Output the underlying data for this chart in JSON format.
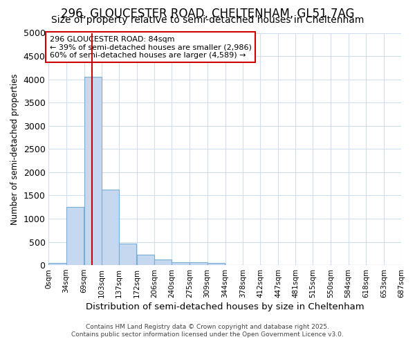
{
  "title1": "296, GLOUCESTER ROAD, CHELTENHAM, GL51 7AG",
  "title2": "Size of property relative to semi-detached houses in Cheltenham",
  "xlabel": "Distribution of semi-detached houses by size in Cheltenham",
  "ylabel": "Number of semi-detached properties",
  "bin_labels": [
    "0sqm",
    "34sqm",
    "69sqm",
    "103sqm",
    "137sqm",
    "172sqm",
    "206sqm",
    "240sqm",
    "275sqm",
    "309sqm",
    "344sqm",
    "378sqm",
    "412sqm",
    "447sqm",
    "481sqm",
    "515sqm",
    "550sqm",
    "584sqm",
    "618sqm",
    "653sqm",
    "687sqm"
  ],
  "bin_edges": [
    0,
    34,
    69,
    103,
    137,
    172,
    206,
    240,
    275,
    309,
    344,
    378,
    412,
    447,
    481,
    515,
    550,
    584,
    618,
    653,
    687
  ],
  "bar_heights": [
    50,
    1250,
    4050,
    1630,
    470,
    220,
    120,
    65,
    55,
    40,
    0,
    0,
    0,
    0,
    0,
    0,
    0,
    0,
    0,
    0
  ],
  "bar_color": "#c5d8f0",
  "bar_edgecolor": "#7aadd4",
  "red_line_x": 84,
  "annotation_line1": "296 GLOUCESTER ROAD: 84sqm",
  "annotation_line2": "← 39% of semi-detached houses are smaller (2,986)",
  "annotation_line3": "60% of semi-detached houses are larger (4,589) →",
  "annotation_box_color": "#ffffff",
  "annotation_box_edgecolor": "#cc0000",
  "footnote1": "Contains HM Land Registry data © Crown copyright and database right 2025.",
  "footnote2": "Contains public sector information licensed under the Open Government Licence v3.0.",
  "ylim": [
    0,
    5000
  ],
  "background_color": "#ffffff",
  "grid_color": "#d0dff0",
  "title1_fontsize": 12,
  "title2_fontsize": 10
}
